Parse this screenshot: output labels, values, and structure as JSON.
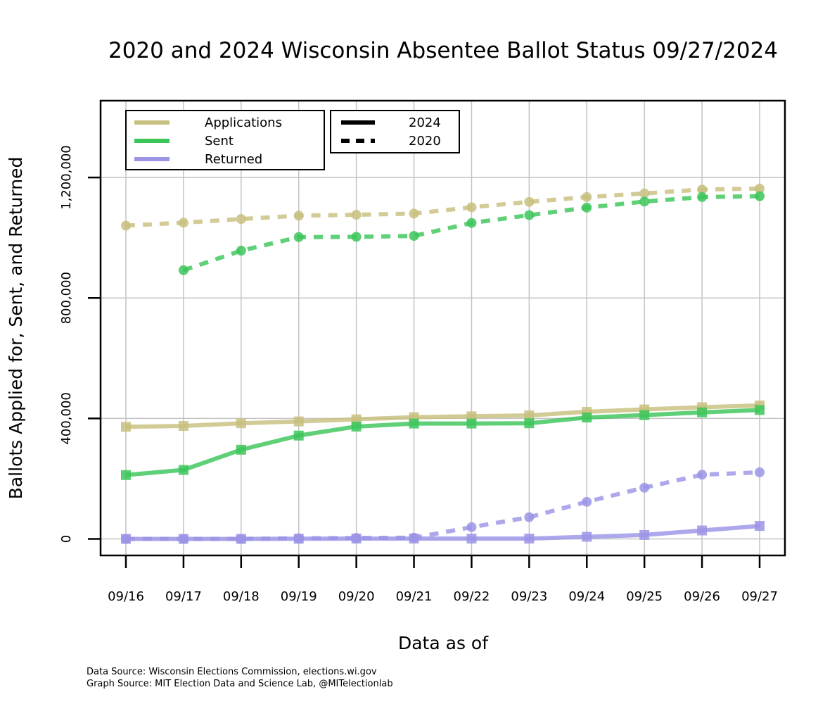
{
  "title": "2020 and 2024 Wisconsin Absentee Ballot Status 09/27/2024",
  "source_lines": [
    "Data Source: Wisconsin Elections Commission, elections.wi.gov",
    "Graph Source: MIT Election Data and Science Lab, @MITelectionlab"
  ],
  "legend": {
    "metrics": [
      {
        "label": "Applications",
        "color": "#c8c07f"
      },
      {
        "label": "Sent",
        "color": "#3cc65a"
      },
      {
        "label": "Returned",
        "color": "#9b94e6"
      }
    ],
    "years": [
      {
        "label": "2024",
        "style": "solid"
      },
      {
        "label": "2020",
        "style": "dashed"
      }
    ]
  },
  "chart_data": {
    "type": "line",
    "xlabel": "Data as of",
    "ylabel": "Ballots Applied for, Sent, and Returned",
    "categories": [
      "09/16",
      "09/17",
      "09/18",
      "09/19",
      "09/20",
      "09/21",
      "09/22",
      "09/23",
      "09/24",
      "09/25",
      "09/26",
      "09/27"
    ],
    "yticks": [
      0,
      400000,
      800000,
      1200000
    ],
    "ytick_labels": [
      "0",
      "400,000",
      "800,000",
      "1,200,000"
    ],
    "ylim": [
      -55000,
      1455000
    ],
    "grid": true,
    "legend_position": "top-left",
    "series": [
      {
        "metric": "Applications",
        "year": "2024",
        "style": "solid",
        "marker": "square",
        "color": "#c8c07f",
        "values": [
          372000,
          375000,
          384000,
          390000,
          397000,
          404000,
          407000,
          410000,
          422000,
          430000,
          437000,
          443000
        ]
      },
      {
        "metric": "Sent",
        "year": "2024",
        "style": "solid",
        "marker": "square",
        "color": "#3cc65a",
        "values": [
          212000,
          229000,
          296000,
          343000,
          373000,
          383000,
          383000,
          384000,
          403000,
          411000,
          420000,
          428000
        ]
      },
      {
        "metric": "Returned",
        "year": "2024",
        "style": "solid",
        "marker": "square",
        "color": "#9b94e6",
        "values": [
          0,
          0,
          0,
          500,
          1000,
          1000,
          1000,
          1000,
          7000,
          13000,
          28000,
          43000
        ]
      },
      {
        "metric": "Applications",
        "year": "2020",
        "style": "dashed",
        "marker": "circle",
        "color": "#c8c07f",
        "values": [
          1040000,
          1050000,
          1062000,
          1073000,
          1076000,
          1080000,
          1101000,
          1119000,
          1135000,
          1147000,
          1160000,
          1163000
        ]
      },
      {
        "metric": "Sent",
        "year": "2020",
        "style": "dashed",
        "marker": "circle",
        "color": "#3cc65a",
        "values": [
          null,
          892000,
          957000,
          1002000,
          1003000,
          1006000,
          1049000,
          1075000,
          1100000,
          1120000,
          1135000,
          1138000
        ]
      },
      {
        "metric": "Returned",
        "year": "2020",
        "style": "dashed",
        "marker": "circle",
        "color": "#9b94e6",
        "values": [
          0,
          0,
          0,
          2000,
          3000,
          4000,
          39000,
          72000,
          123000,
          170000,
          213000,
          221000
        ]
      }
    ]
  }
}
